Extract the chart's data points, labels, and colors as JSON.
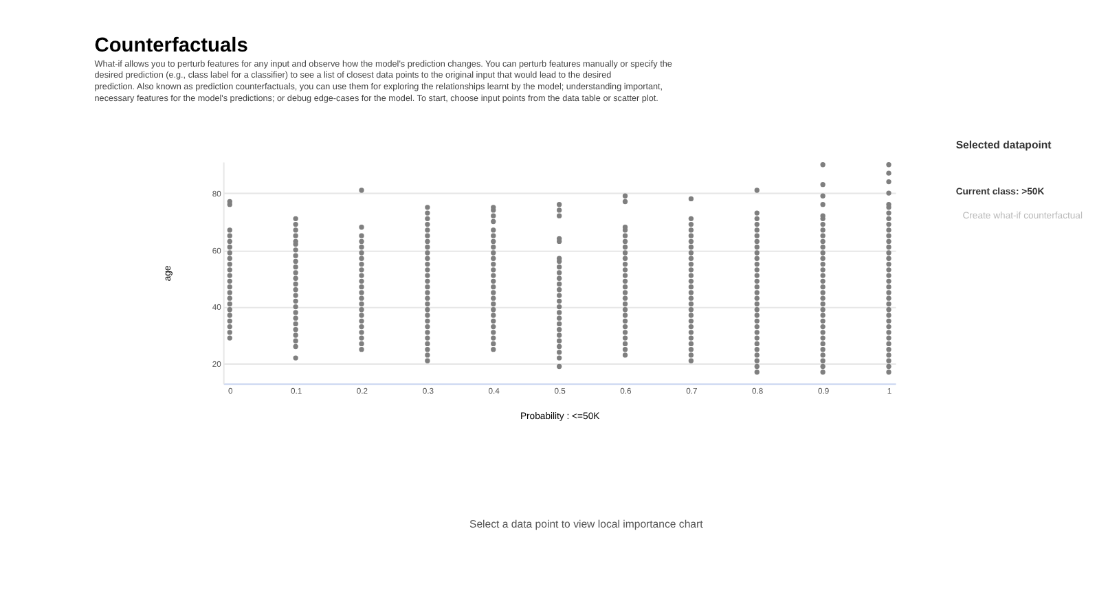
{
  "chart_data": {
    "type": "scatter",
    "title": "Counterfactuals",
    "subtitle": "What-if allows you to perturb features for any input and observe how the model's prediction changes. You can perturb features manually or specify the desired prediction (e.g., class label for a classifier) to see a list of closest data points to the original input that would lead to the desired prediction. Also known as prediction counterfactuals, you can use them for exploring the relationships learnt by the model; understanding important, necessary features for the model's predictions; or debug edge-cases for the model. To start, choose input points from the data table or scatter plot.",
    "xlabel": "Probability : <=50K",
    "ylabel": "age",
    "xlim": [
      -0.01,
      1.01
    ],
    "xticks": [
      0,
      0.1,
      0.2,
      0.3,
      0.4,
      0.5,
      0.6,
      0.7,
      0.8,
      0.9,
      1
    ],
    "ylim": [
      13,
      91
    ],
    "yticks": [
      20,
      40,
      60,
      80
    ],
    "grid": "y",
    "legend": false,
    "marker": "circle",
    "annotations": [
      "Selected datapoint",
      "Current class: >50K",
      "Create what-if counterfactual",
      "Select a data point to view local importance chart"
    ],
    "series": [
      {
        "color": "#7f7f7f",
        "x": [
          0,
          0,
          0,
          0,
          0,
          0,
          0,
          0,
          0,
          0,
          0,
          0,
          0,
          0,
          0,
          0,
          0,
          0,
          0,
          0,
          0,
          0
        ],
        "values": [
          29,
          31,
          33,
          35,
          37,
          39,
          41,
          43,
          45,
          47,
          49,
          51,
          53,
          55,
          57,
          59,
          61,
          63,
          65,
          67,
          76,
          77
        ]
      },
      {
        "color": "#7f7f7f",
        "x": [
          0.1,
          0.1,
          0.1,
          0.1,
          0.1,
          0.1,
          0.1,
          0.1,
          0.1,
          0.1,
          0.1,
          0.1,
          0.1,
          0.1,
          0.1,
          0.1,
          0.1,
          0.1,
          0.1,
          0.1,
          0.1,
          0.1,
          0.1,
          0.1,
          0.1
        ],
        "values": [
          22,
          26,
          28,
          30,
          32,
          34,
          36,
          38,
          40,
          42,
          44,
          46,
          48,
          50,
          52,
          54,
          56,
          58,
          60,
          62,
          63,
          65,
          67,
          69,
          71
        ]
      },
      {
        "color": "#7f7f7f",
        "x": [
          0.2,
          0.2,
          0.2,
          0.2,
          0.2,
          0.2,
          0.2,
          0.2,
          0.2,
          0.2,
          0.2,
          0.2,
          0.2,
          0.2,
          0.2,
          0.2,
          0.2,
          0.2,
          0.2,
          0.2,
          0.2,
          0.2,
          0.2
        ],
        "values": [
          25,
          27,
          29,
          31,
          33,
          35,
          37,
          39,
          41,
          43,
          45,
          47,
          49,
          51,
          53,
          55,
          57,
          59,
          61,
          63,
          65,
          68,
          81
        ]
      },
      {
        "color": "#7f7f7f",
        "x": [
          0.3,
          0.3,
          0.3,
          0.3,
          0.3,
          0.3,
          0.3,
          0.3,
          0.3,
          0.3,
          0.3,
          0.3,
          0.3,
          0.3,
          0.3,
          0.3,
          0.3,
          0.3,
          0.3,
          0.3,
          0.3,
          0.3,
          0.3,
          0.3,
          0.3,
          0.3,
          0.3,
          0.3
        ],
        "values": [
          21,
          23,
          25,
          27,
          29,
          31,
          33,
          35,
          37,
          39,
          41,
          43,
          45,
          47,
          49,
          51,
          53,
          55,
          57,
          59,
          61,
          63,
          65,
          67,
          69,
          71,
          73,
          75
        ]
      },
      {
        "color": "#7f7f7f",
        "x": [
          0.4,
          0.4,
          0.4,
          0.4,
          0.4,
          0.4,
          0.4,
          0.4,
          0.4,
          0.4,
          0.4,
          0.4,
          0.4,
          0.4,
          0.4,
          0.4,
          0.4,
          0.4,
          0.4,
          0.4,
          0.4,
          0.4,
          0.4,
          0.4,
          0.4,
          0.4
        ],
        "values": [
          25,
          27,
          29,
          31,
          33,
          35,
          37,
          39,
          41,
          43,
          45,
          47,
          49,
          51,
          53,
          55,
          57,
          59,
          61,
          63,
          65,
          67,
          70,
          72,
          74,
          75
        ]
      },
      {
        "color": "#7f7f7f",
        "x": [
          0.5,
          0.5,
          0.5,
          0.5,
          0.5,
          0.5,
          0.5,
          0.5,
          0.5,
          0.5,
          0.5,
          0.5,
          0.5,
          0.5,
          0.5,
          0.5,
          0.5,
          0.5,
          0.5,
          0.5,
          0.5,
          0.5,
          0.5,
          0.5,
          0.5
        ],
        "values": [
          19,
          22,
          24,
          26,
          28,
          30,
          32,
          34,
          36,
          38,
          40,
          42,
          44,
          46,
          48,
          50,
          52,
          54,
          56,
          57,
          63,
          64,
          72,
          74,
          76
        ]
      },
      {
        "color": "#7f7f7f",
        "x": [
          0.6,
          0.6,
          0.6,
          0.6,
          0.6,
          0.6,
          0.6,
          0.6,
          0.6,
          0.6,
          0.6,
          0.6,
          0.6,
          0.6,
          0.6,
          0.6,
          0.6,
          0.6,
          0.6,
          0.6,
          0.6,
          0.6,
          0.6,
          0.6,
          0.6,
          0.6
        ],
        "values": [
          23,
          25,
          27,
          29,
          31,
          33,
          35,
          37,
          39,
          41,
          43,
          45,
          47,
          49,
          51,
          53,
          55,
          57,
          59,
          61,
          63,
          65,
          67,
          68,
          77,
          79
        ]
      },
      {
        "color": "#7f7f7f",
        "x": [
          0.7,
          0.7,
          0.7,
          0.7,
          0.7,
          0.7,
          0.7,
          0.7,
          0.7,
          0.7,
          0.7,
          0.7,
          0.7,
          0.7,
          0.7,
          0.7,
          0.7,
          0.7,
          0.7,
          0.7,
          0.7,
          0.7,
          0.7,
          0.7,
          0.7,
          0.7,
          0.7
        ],
        "values": [
          21,
          23,
          25,
          27,
          29,
          31,
          33,
          35,
          37,
          39,
          41,
          43,
          45,
          47,
          49,
          51,
          53,
          55,
          57,
          59,
          61,
          63,
          65,
          67,
          69,
          71,
          78
        ]
      },
      {
        "color": "#7f7f7f",
        "x": [
          0.8,
          0.8,
          0.8,
          0.8,
          0.8,
          0.8,
          0.8,
          0.8,
          0.8,
          0.8,
          0.8,
          0.8,
          0.8,
          0.8,
          0.8,
          0.8,
          0.8,
          0.8,
          0.8,
          0.8,
          0.8,
          0.8,
          0.8,
          0.8,
          0.8,
          0.8,
          0.8,
          0.8,
          0.8,
          0.8
        ],
        "values": [
          17,
          19,
          21,
          23,
          25,
          27,
          29,
          31,
          33,
          35,
          37,
          39,
          41,
          43,
          45,
          47,
          49,
          51,
          53,
          55,
          57,
          59,
          61,
          63,
          65,
          67,
          69,
          71,
          73,
          81
        ]
      },
      {
        "color": "#7f7f7f",
        "x": [
          0.9,
          0.9,
          0.9,
          0.9,
          0.9,
          0.9,
          0.9,
          0.9,
          0.9,
          0.9,
          0.9,
          0.9,
          0.9,
          0.9,
          0.9,
          0.9,
          0.9,
          0.9,
          0.9,
          0.9,
          0.9,
          0.9,
          0.9,
          0.9,
          0.9,
          0.9,
          0.9,
          0.9,
          0.9,
          0.9,
          0.9,
          0.9,
          0.9
        ],
        "values": [
          17,
          19,
          21,
          23,
          25,
          27,
          29,
          31,
          33,
          35,
          37,
          39,
          41,
          43,
          45,
          47,
          49,
          51,
          53,
          55,
          57,
          59,
          61,
          63,
          65,
          67,
          69,
          71,
          72,
          76,
          79,
          83,
          90
        ]
      },
      {
        "color": "#7f7f7f",
        "x": [
          1,
          1,
          1,
          1,
          1,
          1,
          1,
          1,
          1,
          1,
          1,
          1,
          1,
          1,
          1,
          1,
          1,
          1,
          1,
          1,
          1,
          1,
          1,
          1,
          1,
          1,
          1,
          1,
          1,
          1,
          1,
          1,
          1,
          1,
          1
        ],
        "values": [
          17,
          19,
          21,
          23,
          25,
          27,
          29,
          31,
          33,
          35,
          37,
          39,
          41,
          43,
          45,
          47,
          49,
          51,
          53,
          55,
          57,
          59,
          61,
          63,
          65,
          67,
          69,
          71,
          73,
          75,
          76,
          80,
          84,
          87,
          90
        ]
      }
    ]
  }
}
